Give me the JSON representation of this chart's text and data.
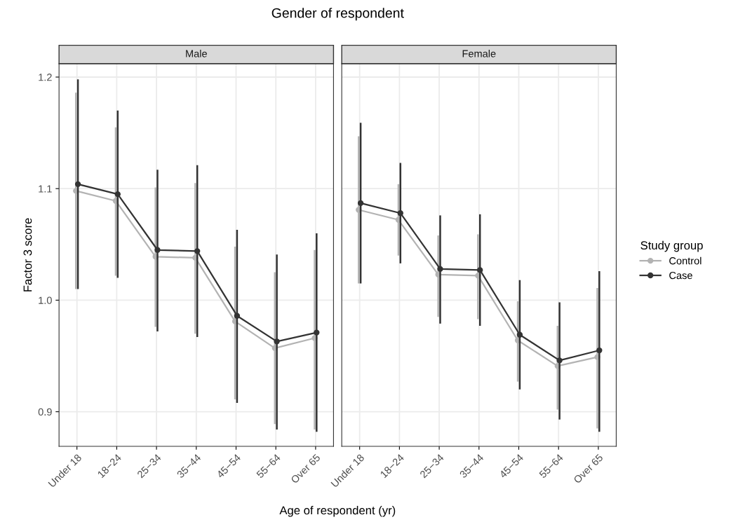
{
  "chart_data": [
    {
      "type": "line",
      "title": "Male",
      "annotations": [
        "Gender of respondent"
      ],
      "xlabel": "Age of respondent (yr)",
      "ylabel": "Factor 3 score",
      "categories": [
        "Under 18",
        "18−24",
        "25−34",
        "35−44",
        "45−54",
        "55−64",
        "Over 65"
      ],
      "ylim": [
        0.869,
        1.212
      ],
      "yticks": [
        0.9,
        {
          "value": 1.0,
          "label": "1.0"
        },
        1.1,
        1.2
      ],
      "grid": true,
      "marker": "circle",
      "line_style": "solid",
      "legend": "right",
      "legend_title": "Study group",
      "series": [
        {
          "name": "Control",
          "color": "#b3b3b3",
          "values": [
            1.098,
            1.089,
            1.039,
            1.038,
            0.981,
            0.957,
            0.966
          ],
          "errors": [
            [
              1.01,
              1.186
            ],
            [
              1.022,
              1.155
            ],
            [
              0.976,
              1.101
            ],
            [
              0.97,
              1.105
            ],
            [
              0.911,
              1.048
            ],
            [
              0.889,
              1.025
            ],
            [
              0.884,
              1.045
            ]
          ]
        },
        {
          "name": "Case",
          "color": "#333333",
          "values": [
            1.104,
            1.095,
            1.045,
            1.044,
            0.986,
            0.963,
            0.971
          ],
          "errors": [
            [
              1.01,
              1.198
            ],
            [
              1.02,
              1.17
            ],
            [
              0.972,
              1.117
            ],
            [
              0.967,
              1.121
            ],
            [
              0.908,
              1.063
            ],
            [
              0.884,
              1.041
            ],
            [
              0.882,
              1.06
            ]
          ]
        }
      ]
    },
    {
      "type": "line",
      "title": "Female",
      "categories": [
        "Under 18",
        "18−24",
        "25−34",
        "35−44",
        "45−54",
        "55−64",
        "Over 65"
      ],
      "ylim": [
        0.869,
        1.212
      ],
      "yticks": [
        0.9,
        1.0,
        1.1,
        1.2
      ],
      "tick_labels": "x",
      "grid": true,
      "marker": "circle",
      "line_style": "solid",
      "series": [
        {
          "color": "#b3b3b3",
          "values": [
            1.081,
            1.072,
            1.023,
            1.022,
            0.964,
            0.941,
            0.949
          ],
          "errors": [
            [
              1.015,
              1.147
            ],
            [
              1.04,
              1.104
            ],
            [
              0.985,
              1.058
            ],
            [
              0.983,
              1.059
            ],
            [
              0.927,
              0.999
            ],
            [
              0.902,
              0.977
            ],
            [
              0.885,
              1.011
            ]
          ]
        },
        {
          "color": "#333333",
          "values": [
            1.087,
            1.078,
            1.028,
            1.027,
            0.969,
            0.946,
            0.955
          ],
          "errors": [
            [
              1.015,
              1.159
            ],
            [
              1.033,
              1.123
            ],
            [
              0.979,
              1.076
            ],
            [
              0.977,
              1.077
            ],
            [
              0.92,
              1.018
            ],
            [
              0.893,
              0.998
            ],
            [
              0.882,
              1.026
            ]
          ]
        }
      ]
    }
  ]
}
